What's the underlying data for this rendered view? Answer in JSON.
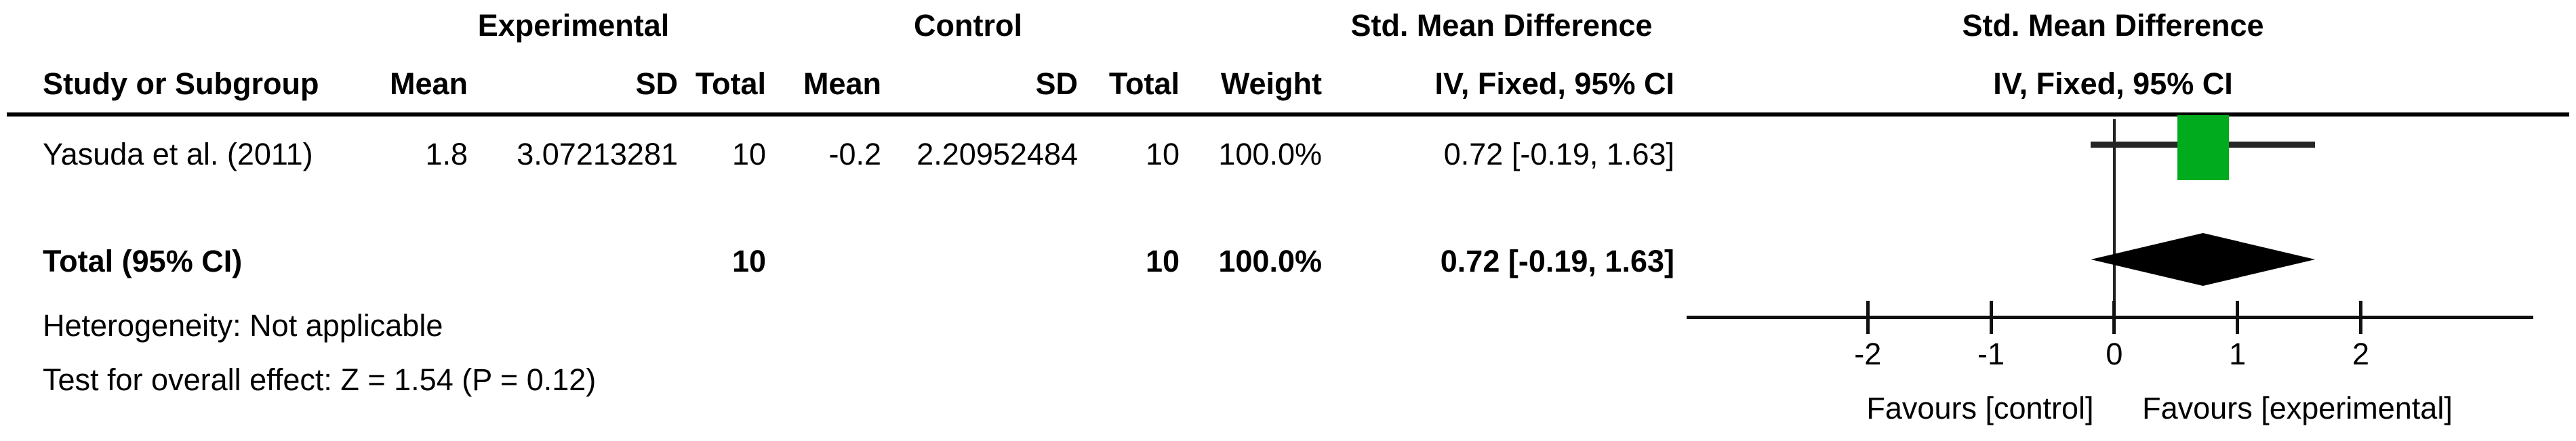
{
  "table": {
    "group_headers": {
      "experimental": "Experimental",
      "control": "Control",
      "smd_text_col": "Std. Mean Difference",
      "smd_plot_col": "Std. Mean Difference"
    },
    "column_headers": {
      "study": "Study or Subgroup",
      "mean_exp": "Mean",
      "sd_exp": "SD",
      "total_exp": "Total",
      "mean_ctrl": "Mean",
      "sd_ctrl": "SD",
      "total_ctrl": "Total",
      "weight": "Weight",
      "ci": "IV, Fixed, 95% CI",
      "ci_plot": "IV, Fixed, 95% CI"
    },
    "rows": [
      {
        "study": "Yasuda et al. (2011)",
        "mean_exp": "1.8",
        "sd_exp": "3.07213281",
        "total_exp": "10",
        "mean_ctrl": "-0.2",
        "sd_ctrl": "2.20952484",
        "total_ctrl": "10",
        "weight": "100.0%",
        "ci": "0.72 [-0.19, 1.63]"
      }
    ],
    "total_row": {
      "label": "Total (95% CI)",
      "total_exp": "10",
      "total_ctrl": "10",
      "weight": "100.0%",
      "ci": "0.72 [-0.19, 1.63]"
    },
    "footnotes": {
      "heterogeneity": "Heterogeneity: Not applicable",
      "overall_effect": "Test for overall effect: Z = 1.54 (P = 0.12)"
    }
  },
  "chart_data": {
    "type": "forest",
    "effect_measure": "Std. Mean Difference",
    "model": "IV, Fixed, 95% CI",
    "studies": [
      {
        "name": "Yasuda et al. (2011)",
        "effect": 0.72,
        "ci_low": -0.19,
        "ci_high": 1.63,
        "weight_pct": 100.0,
        "marker_color": "#00AB1E"
      }
    ],
    "total": {
      "label": "Total (95% CI)",
      "effect": 0.72,
      "ci_low": -0.19,
      "ci_high": 1.63
    },
    "axis": {
      "ticks": [
        -2,
        -1,
        0,
        1,
        2
      ],
      "domain": [
        -3.47,
        3.4
      ],
      "zero_line": true
    },
    "xlabel_left": "Favours [control]",
    "xlabel_right": "Favours [experimental]"
  },
  "colors": {
    "marker_green": "#00AB1E",
    "diamond": "#000000",
    "text": "#000000"
  }
}
